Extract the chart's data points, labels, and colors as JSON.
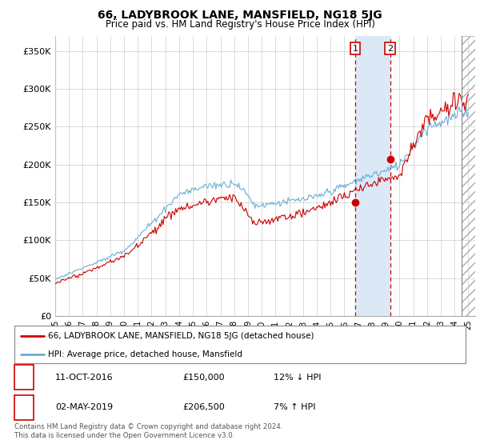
{
  "title": "66, LADYBROOK LANE, MANSFIELD, NG18 5JG",
  "subtitle": "Price paid vs. HM Land Registry's House Price Index (HPI)",
  "xlim": [
    1995.0,
    2025.5
  ],
  "ylim": [
    0,
    370000
  ],
  "yticks": [
    0,
    50000,
    100000,
    150000,
    200000,
    250000,
    300000,
    350000
  ],
  "ytick_labels": [
    "£0",
    "£50K",
    "£100K",
    "£150K",
    "£200K",
    "£250K",
    "£300K",
    "£350K"
  ],
  "xticks": [
    1995,
    1996,
    1997,
    1998,
    1999,
    2000,
    2001,
    2002,
    2003,
    2004,
    2005,
    2006,
    2007,
    2008,
    2009,
    2010,
    2011,
    2012,
    2013,
    2014,
    2015,
    2016,
    2017,
    2018,
    2019,
    2020,
    2021,
    2022,
    2023,
    2024,
    2025
  ],
  "xtick_labels": [
    "95",
    "96",
    "97",
    "98",
    "99",
    "00",
    "01",
    "02",
    "03",
    "04",
    "05",
    "06",
    "07",
    "08",
    "09",
    "10",
    "11",
    "12",
    "13",
    "14",
    "15",
    "16",
    "17",
    "18",
    "19",
    "20",
    "21",
    "22",
    "23",
    "24",
    "25"
  ],
  "hpi_color": "#6baed6",
  "price_color": "#cc0000",
  "highlight_bg": "#dbe9f7",
  "sale1_x": 2016.78,
  "sale1_y": 150000,
  "sale2_x": 2019.33,
  "sale2_y": 206500,
  "annotation1_label": "1",
  "annotation2_label": "2",
  "hatch_start": 2024.5,
  "legend_line1": "66, LADYBROOK LANE, MANSFIELD, NG18 5JG (detached house)",
  "legend_line2": "HPI: Average price, detached house, Mansfield",
  "table_row1": [
    "1",
    "11-OCT-2016",
    "£150,000",
    "12% ↓ HPI"
  ],
  "table_row2": [
    "2",
    "02-MAY-2019",
    "£206,500",
    "7% ↑ HPI"
  ],
  "footnote": "Contains HM Land Registry data © Crown copyright and database right 2024.\nThis data is licensed under the Open Government Licence v3.0.",
  "bg_color": "#ffffff",
  "grid_color": "#cccccc"
}
